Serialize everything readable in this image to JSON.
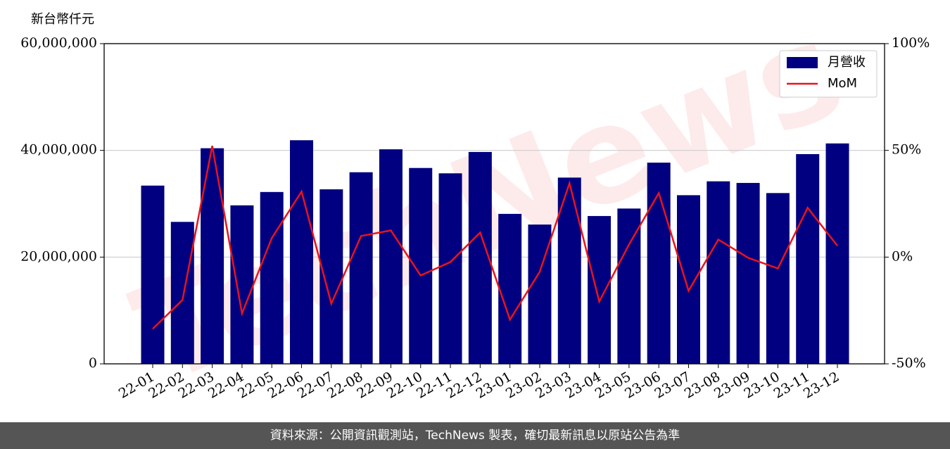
{
  "chart_data": {
    "type": "bar_line",
    "y_axis_label": "新台幣仟元",
    "watermark": "TechNews",
    "categories": [
      "22-01",
      "22-02",
      "22-03",
      "22-04",
      "22-05",
      "22-06",
      "22-07",
      "22-08",
      "22-09",
      "22-10",
      "22-11",
      "22-12",
      "23-01",
      "23-02",
      "23-03",
      "23-04",
      "23-05",
      "23-06",
      "23-07",
      "23-08",
      "23-09",
      "23-10",
      "23-11",
      "23-12"
    ],
    "series": [
      {
        "name": "月營收",
        "color": "#000080",
        "type": "bar",
        "values": [
          33400000,
          26600000,
          40400000,
          29700000,
          32200000,
          41900000,
          32700000,
          35900000,
          40200000,
          36700000,
          35700000,
          39700000,
          28100000,
          26100000,
          34900000,
          27700000,
          29100000,
          37700000,
          31600000,
          34200000,
          33900000,
          32000000,
          39300000,
          41300000
        ]
      },
      {
        "name": "MoM",
        "color": "#e8141a",
        "type": "line",
        "axis": "y2",
        "values": [
          -33.6,
          -20.1,
          52.1,
          -26.4,
          8.9,
          30.7,
          -21.8,
          9.9,
          12.5,
          -8.6,
          -2.3,
          11.5,
          -29.3,
          -6.9,
          34.6,
          -20.8,
          5.9,
          30.0,
          -15.8,
          8.2,
          -0.3,
          -5.3,
          23.1,
          5.3
        ]
      }
    ],
    "ylim": [
      0,
      60000000
    ],
    "yticks": [
      0,
      {
        "value": 20000000,
        "label": "20,000,000"
      },
      {
        "value": 40000000,
        "label": "40,000,000"
      },
      {
        "value": 60000000,
        "label": "60,000,000"
      }
    ],
    "y2lim": [
      -50,
      100
    ],
    "y2ticks": [
      {
        "value": -50,
        "label": "-50%"
      },
      {
        "value": 0,
        "label": "0%"
      },
      {
        "value": 50,
        "label": "50%"
      },
      {
        "value": 100,
        "label": "100%"
      }
    ],
    "grid": true,
    "legend": "upper right"
  },
  "footer": "資料來源：公開資訊觀測站，TechNews 製表，確切最新訊息以原站公告為準"
}
